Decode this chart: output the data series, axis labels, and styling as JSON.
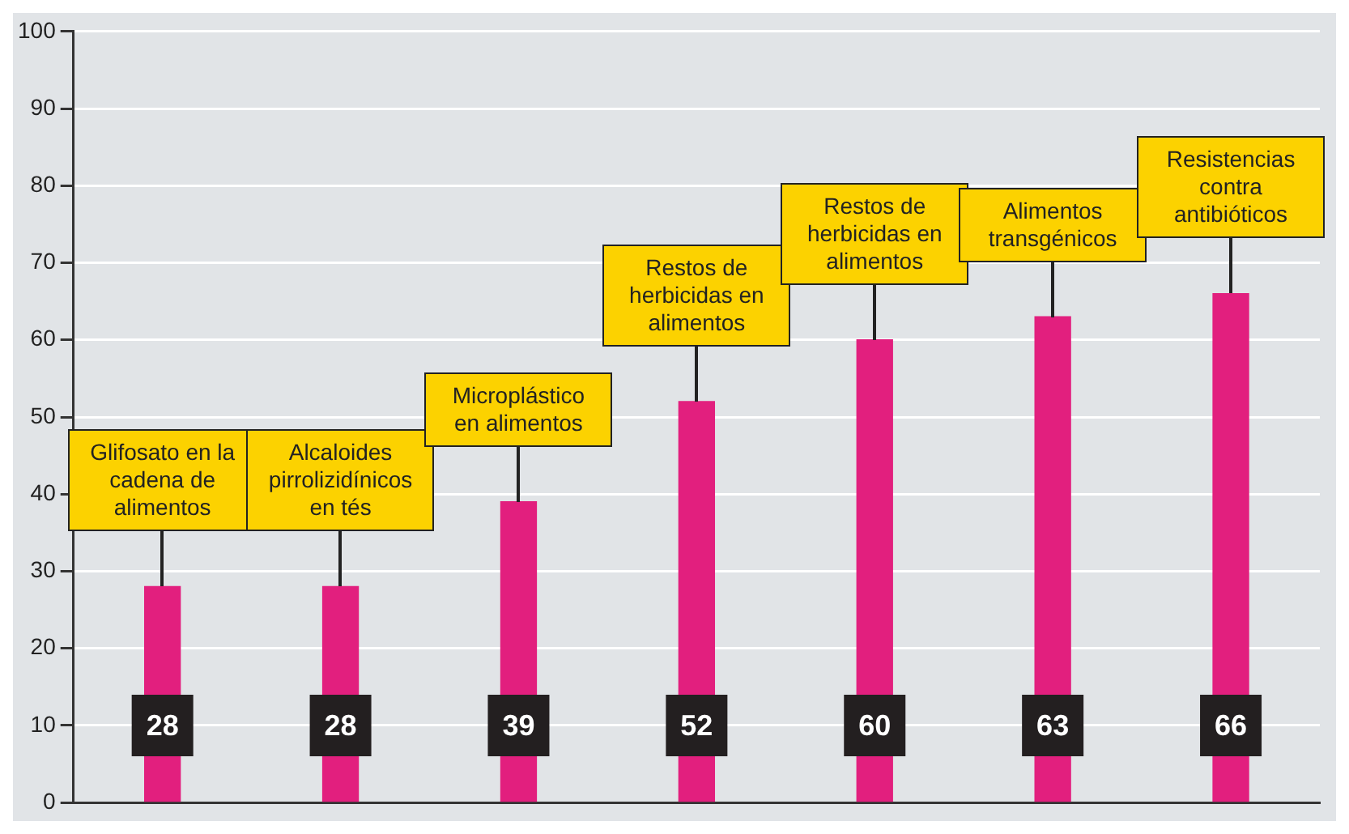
{
  "chart_data": {
    "type": "bar",
    "categories": [
      "Glifosato en la cadena de alimentos",
      "Alcaloides pirrolizidínicos en tés",
      "Microplástico en alimentos",
      "Restos de herbicidas en alimentos",
      "Restos de herbicidas en alimentos",
      "Alimentos transgénicos",
      "Resistencias contra antibióticos"
    ],
    "values": [
      28,
      28,
      39,
      52,
      60,
      63,
      66
    ],
    "color": "#e21f7e",
    "ylim": [
      0,
      100
    ],
    "yticks": [
      0,
      10,
      20,
      30,
      40,
      50,
      60,
      70,
      80,
      90,
      100
    ],
    "grid": "y",
    "data_labels": true
  }
}
